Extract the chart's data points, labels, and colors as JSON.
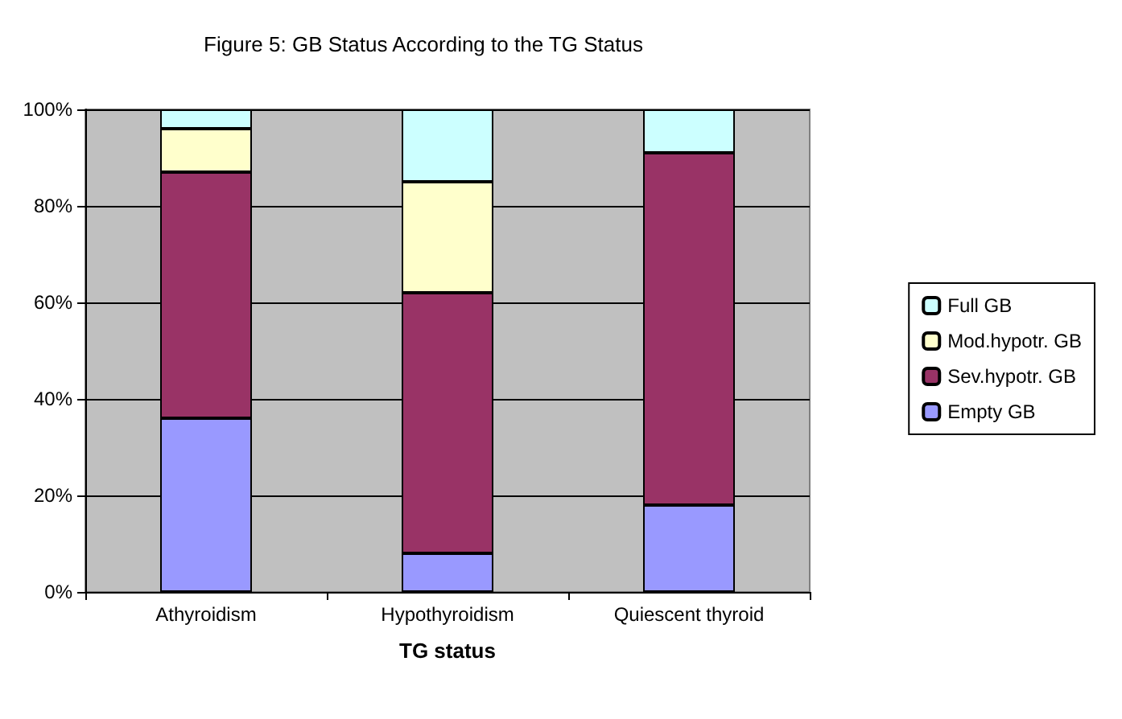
{
  "chart_data": {
    "type": "bar",
    "title": "Figure 5: GB Status According to the TG Status",
    "xlabel": "TG status",
    "categories": [
      "Athyroidism",
      "Hypothyroidism",
      "Quiescent thyroid"
    ],
    "stacked": true,
    "series": [
      {
        "name": "Empty GB",
        "color": "#9999ff",
        "values": [
          36,
          8,
          18
        ]
      },
      {
        "name": "Sev.hypotr. GB",
        "color": "#993366",
        "values": [
          51,
          54,
          73
        ]
      },
      {
        "name": "Mod.hypotr. GB",
        "color": "#ffffcc",
        "values": [
          9,
          23,
          0
        ]
      },
      {
        "name": "Full GB",
        "color": "#ccffff",
        "values": [
          4,
          15,
          9
        ]
      }
    ],
    "ylim": [
      0,
      100
    ],
    "yticks": [
      {
        "value": 0,
        "label": "0%"
      },
      {
        "value": 20,
        "label": "20%"
      },
      {
        "value": 40,
        "label": "40%"
      },
      {
        "value": 60,
        "label": "60%"
      },
      {
        "value": 80,
        "label": "80%"
      },
      {
        "value": 100,
        "label": "100%"
      }
    ],
    "grid": "y",
    "legend": "right"
  }
}
